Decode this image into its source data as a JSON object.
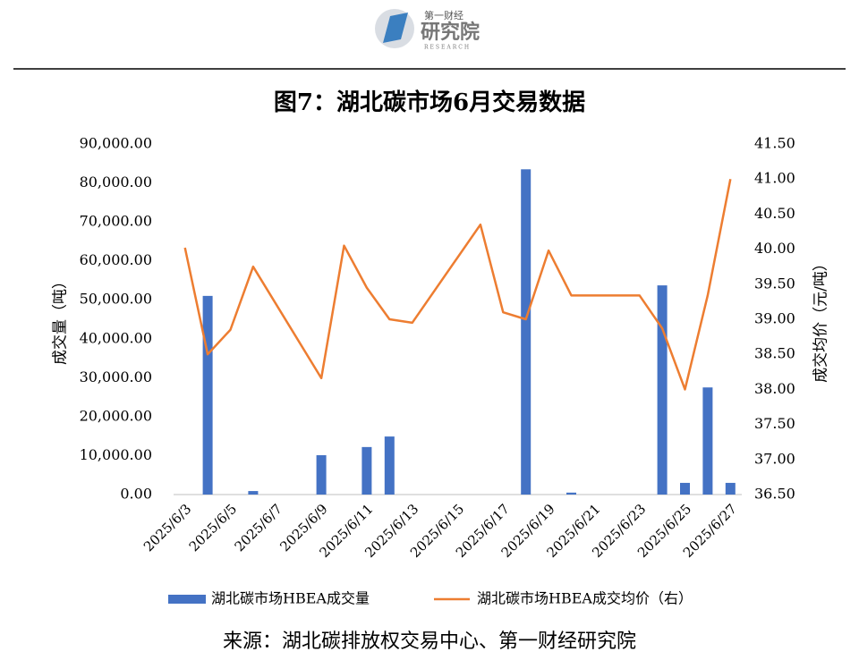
{
  "logo": {
    "top": "第一财经",
    "main": "研究院",
    "sub": "RESEARCH"
  },
  "source": "来源：湖北碳排放权交易中心、第一财经研究院",
  "chart_data": {
    "type": "bar_line",
    "title": "图7：湖北碳市场6月交易数据",
    "ylabel": "成交量（吨）",
    "y2label": "成交均价（元/吨）",
    "connect_gaps": true,
    "categories": [
      "2025/6/3",
      null,
      "2025/6/5",
      null,
      "2025/6/7",
      null,
      "2025/6/9",
      null,
      "2025/6/11",
      null,
      "2025/6/13",
      null,
      "2025/6/15",
      null,
      "2025/6/17",
      null,
      "2025/6/19",
      null,
      "2025/6/21",
      null,
      "2025/6/23",
      null,
      "2025/6/25",
      null,
      "2025/6/27"
    ],
    "series": [
      {
        "name": "湖北碳市场HBEA成交量",
        "type": "bar",
        "color": "#4472c4",
        "values": [
          0,
          51000,
          0,
          900,
          null,
          null,
          10100,
          0,
          12200,
          14900,
          0,
          null,
          null,
          0,
          0,
          83500,
          0,
          500,
          null,
          null,
          0,
          53700,
          3000,
          27500,
          3000
        ]
      },
      {
        "name": "湖北碳市场HBEA成交均价（右）",
        "type": "line",
        "axis": "y2",
        "color": "#ed7d31",
        "values": [
          40.02,
          38.5,
          38.85,
          39.75,
          null,
          null,
          38.16,
          40.05,
          39.45,
          39.0,
          38.95,
          null,
          null,
          40.35,
          39.1,
          39.0,
          39.98,
          39.34,
          null,
          null,
          39.34,
          38.87,
          38.0,
          39.34,
          41.0
        ]
      }
    ],
    "ylim": [
      0,
      90000
    ],
    "yticks": [
      {
        "value": 0,
        "label": "0.00"
      },
      {
        "value": 10000,
        "label": "10,000.00"
      },
      {
        "value": 20000,
        "label": "20,000.00"
      },
      {
        "value": 30000,
        "label": "30,000.00"
      },
      {
        "value": 40000,
        "label": "40,000.00"
      },
      {
        "value": 50000,
        "label": "50,000.00"
      },
      {
        "value": 60000,
        "label": "60,000.00"
      },
      {
        "value": 70000,
        "label": "70,000.00"
      },
      {
        "value": 80000,
        "label": "80,000.00"
      },
      {
        "value": 90000,
        "label": "90,000.00"
      }
    ],
    "y2lim": [
      36.5,
      41.5
    ],
    "y2ticks": [
      {
        "value": 36.5,
        "label": "36.50"
      },
      {
        "value": 37,
        "label": "37.00"
      },
      {
        "value": 37.5,
        "label": "37.50"
      },
      {
        "value": 38,
        "label": "38.00"
      },
      {
        "value": 38.5,
        "label": "38.50"
      },
      {
        "value": 39,
        "label": "39.00"
      },
      {
        "value": 39.5,
        "label": "39.50"
      },
      {
        "value": 40,
        "label": "40.00"
      },
      {
        "value": 40.5,
        "label": "40.50"
      },
      {
        "value": 41,
        "label": "41.00"
      },
      {
        "value": 41.5,
        "label": "41.50"
      }
    ],
    "grid": false,
    "legend": "bottom"
  }
}
